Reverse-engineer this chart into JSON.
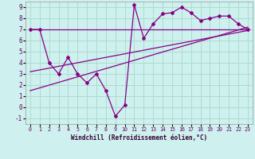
{
  "xlabel": "Windchill (Refroidissement éolien,°C)",
  "bg_color": "#cef0ee",
  "line_color": "#880088",
  "grid_color": "#aaddcc",
  "xlim": [
    -0.5,
    23.5
  ],
  "ylim": [
    -1.5,
    9.5
  ],
  "yticks": [
    -1,
    0,
    1,
    2,
    3,
    4,
    5,
    6,
    7,
    8,
    9
  ],
  "xticks": [
    0,
    1,
    2,
    3,
    4,
    5,
    6,
    7,
    8,
    9,
    10,
    11,
    12,
    13,
    14,
    15,
    16,
    17,
    18,
    19,
    20,
    21,
    22,
    23
  ],
  "data_x": [
    0,
    1,
    2,
    3,
    4,
    5,
    6,
    7,
    8,
    9,
    10,
    11,
    12,
    13,
    14,
    15,
    16,
    17,
    18,
    19,
    20,
    21,
    22,
    23
  ],
  "data_y": [
    7.0,
    7.0,
    4.0,
    3.0,
    4.5,
    3.0,
    2.2,
    3.0,
    1.5,
    -0.8,
    0.2,
    9.2,
    6.2,
    7.5,
    8.4,
    8.5,
    9.0,
    8.5,
    7.8,
    8.0,
    8.2,
    8.2,
    7.5,
    7.0
  ],
  "trend1_x": [
    0,
    23
  ],
  "trend1_y": [
    7.0,
    7.0
  ],
  "trend2_x": [
    0,
    23
  ],
  "trend2_y": [
    3.2,
    6.9
  ],
  "trend3_x": [
    0,
    23
  ],
  "trend3_y": [
    1.5,
    7.2
  ]
}
